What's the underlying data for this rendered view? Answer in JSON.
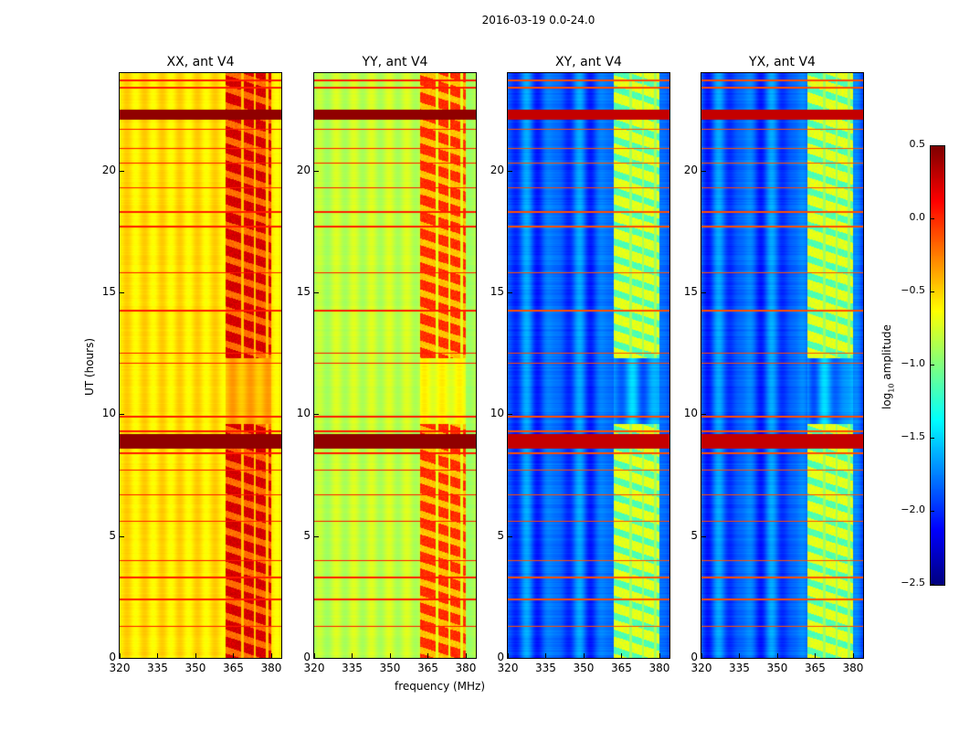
{
  "chart_data": {
    "type": "heatmap",
    "title": "2016-03-19 0.0-24.0",
    "xlabel": "frequency (MHz)",
    "ylabel": "UT (hours)",
    "xlim": [
      320,
      384
    ],
    "ylim": [
      0,
      24
    ],
    "xticks": [
      "320",
      "335",
      "350",
      "365",
      "380"
    ],
    "xtick_values": [
      320,
      335,
      350,
      365,
      380
    ],
    "yticks": [
      "0",
      "5",
      "10",
      "15",
      "20"
    ],
    "ytick_values": [
      0,
      5,
      10,
      15,
      20
    ],
    "colormap": "jet",
    "colorbar": {
      "label_main": "log",
      "label_sub": "10",
      "label_rest": " amplitude",
      "vmin": -2.5,
      "vmax": 0.5,
      "ticks": [
        "0.5",
        "0.0",
        "−0.5",
        "−1.0",
        "−1.5",
        "−2.0",
        "−2.5"
      ],
      "tick_values": [
        0.5,
        0.0,
        -0.5,
        -1.0,
        -1.5,
        -2.0,
        -2.5
      ]
    },
    "panels": [
      {
        "title": "XX, ant V4",
        "base_log_amp": -0.55,
        "rfi_band_log_amp": 0.25
      },
      {
        "title": "YY, ant V4",
        "base_log_amp": -0.8,
        "rfi_band_log_amp": 0.0
      },
      {
        "title": "XY, ant V4",
        "base_log_amp": -1.85,
        "rfi_band_log_amp": -0.7
      },
      {
        "title": "YX, ant V4",
        "base_log_amp": -1.85,
        "rfi_band_log_amp": -0.7
      }
    ],
    "rfi_band_mhz": [
      362,
      380
    ],
    "rfi_active_hours": [
      [
        0,
        9.6
      ],
      [
        12.3,
        24
      ]
    ],
    "interference_lines_hours": [
      23.7,
      23.4,
      22.3,
      21.7,
      20.9,
      20.3,
      19.3,
      18.3,
      17.7,
      15.8,
      14.25,
      12.5,
      12.1,
      9.9,
      9.3,
      9.1,
      8.9,
      8.7,
      8.4,
      7.7,
      6.7,
      5.6,
      4.0,
      3.3,
      2.4,
      1.3
    ],
    "strong_band_hours": [
      [
        22.1,
        22.5
      ],
      [
        8.6,
        9.2
      ]
    ]
  }
}
